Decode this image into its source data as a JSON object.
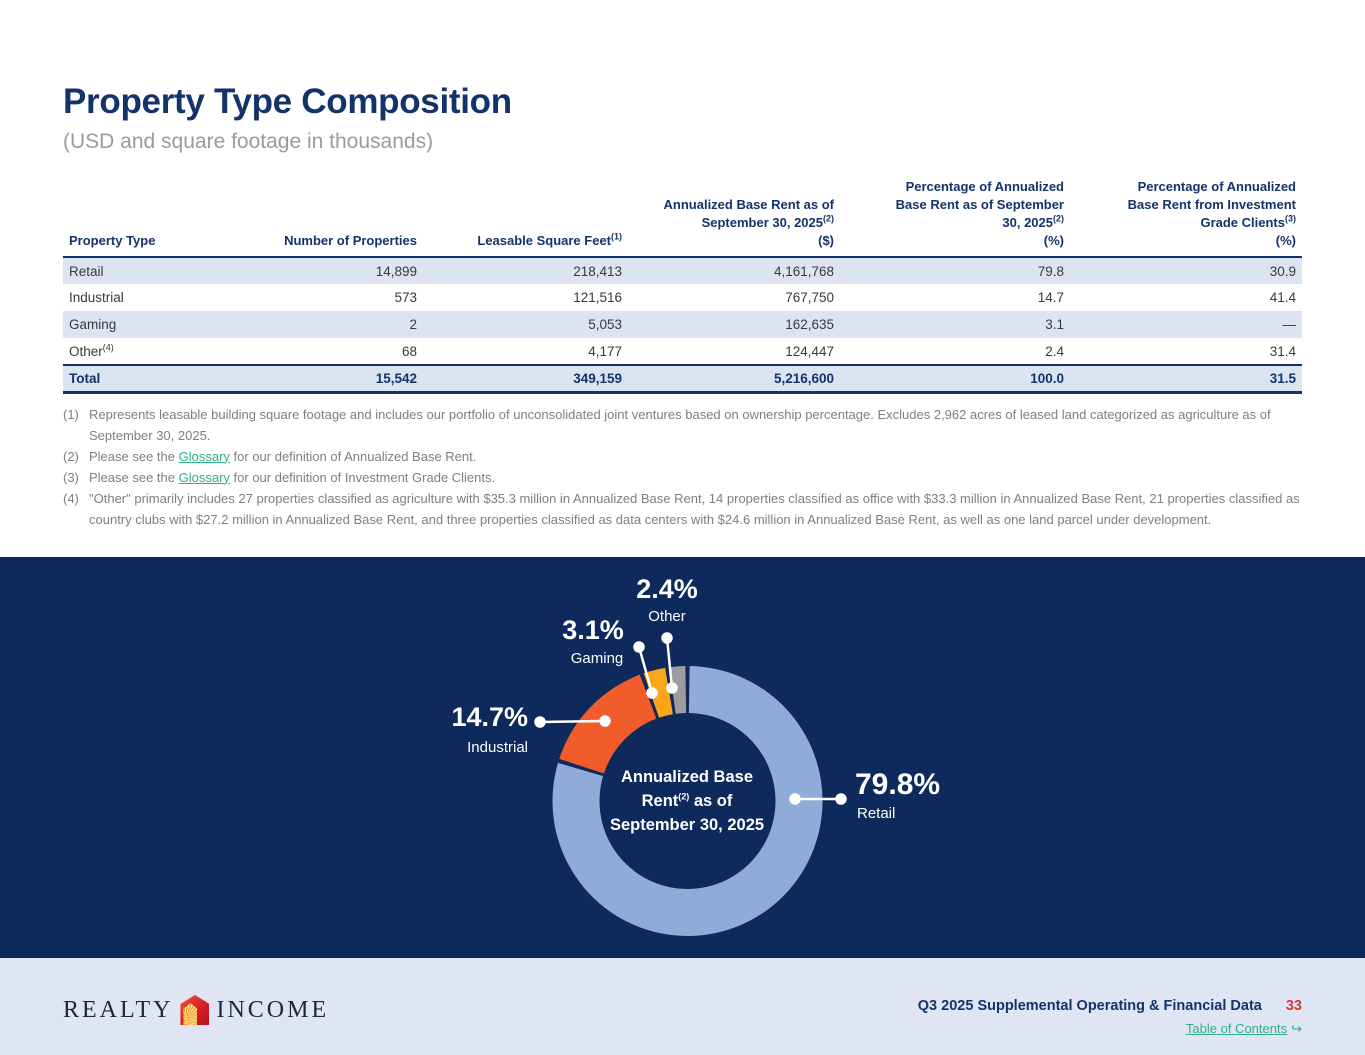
{
  "page": {
    "title": "Property Type Composition",
    "subtitle": "(USD and square footage in thousands)"
  },
  "table": {
    "columns": [
      {
        "label": "Property Type",
        "sup": "",
        "unit": ""
      },
      {
        "label": "Number of Properties",
        "sup": "",
        "unit": ""
      },
      {
        "label": "Leasable Square Feet",
        "sup": "(1)",
        "unit": ""
      },
      {
        "label": "Annualized Base Rent as of September 30, 2025",
        "sup": "(2)",
        "unit": "($)"
      },
      {
        "label": "Percentage of Annualized Base Rent as of September 30, 2025",
        "sup": "(2)",
        "unit": "(%)"
      },
      {
        "label": "Percentage of Annualized Base Rent from Investment Grade Clients",
        "sup": "(3)",
        "unit": "(%)"
      }
    ],
    "rows": [
      {
        "property_type": "Retail",
        "sup": "",
        "num_properties": "14,899",
        "leasable_sqft": "218,413",
        "abr": "4,161,768",
        "abr_pct": "79.8",
        "ig_pct": "30.9"
      },
      {
        "property_type": "Industrial",
        "sup": "",
        "num_properties": "573",
        "leasable_sqft": "121,516",
        "abr": "767,750",
        "abr_pct": "14.7",
        "ig_pct": "41.4"
      },
      {
        "property_type": "Gaming",
        "sup": "",
        "num_properties": "2",
        "leasable_sqft": "5,053",
        "abr": "162,635",
        "abr_pct": "3.1",
        "ig_pct": "—"
      },
      {
        "property_type": "Other",
        "sup": "(4)",
        "num_properties": "68",
        "leasable_sqft": "4,177",
        "abr": "124,447",
        "abr_pct": "2.4",
        "ig_pct": "31.4"
      }
    ],
    "total": {
      "property_type": "Total",
      "num_properties": "15,542",
      "leasable_sqft": "349,159",
      "abr": "5,216,600",
      "abr_pct": "100.0",
      "ig_pct": "31.5"
    }
  },
  "footnotes": [
    {
      "marker": "(1)",
      "segments": [
        {
          "text": "Represents leasable building square footage and includes our portfolio of unconsolidated joint ventures based on ownership percentage. Excludes 2,962 acres of leased land categorized as agriculture as of September 30, 2025."
        }
      ]
    },
    {
      "marker": "(2)",
      "segments": [
        {
          "text": "Please see the "
        },
        {
          "text": "Glossary",
          "link": true
        },
        {
          "text": " for our definition of Annualized Base Rent."
        }
      ]
    },
    {
      "marker": "(3)",
      "segments": [
        {
          "text": "Please see the "
        },
        {
          "text": "Glossary",
          "link": true
        },
        {
          "text": " for our definition of Investment Grade Clients."
        }
      ]
    },
    {
      "marker": "(4)",
      "segments": [
        {
          "text": "\"Other\" primarily includes 27 properties classified as agriculture with $35.3 million in Annualized Base Rent, 14 properties classified as office with $33.3 million in Annualized Base Rent, 21 properties classified as country clubs with $27.2 million in Annualized Base Rent, and three properties classified as data centers with $24.6 million in Annualized Base Rent, as well as one land parcel under development."
        }
      ]
    }
  ],
  "chart_data": {
    "type": "pie",
    "subtype": "donut",
    "background": "#0E2A5C",
    "start_angle_deg": 0,
    "direction": "clockwise",
    "center_label": {
      "line1": "Annualized Base",
      "line2_pre": "Rent",
      "line2_sup": "(2)",
      "line2_post": " as of",
      "line3": "September 30, 2025"
    },
    "series": [
      {
        "name": "Retail",
        "value": 79.8,
        "label": "79.8%",
        "color": "#8FACD9"
      },
      {
        "name": "Industrial",
        "value": 14.7,
        "label": "14.7%",
        "color": "#F15D2A"
      },
      {
        "name": "Gaming",
        "value": 3.1,
        "label": "3.1%",
        "color": "#FAA61A"
      },
      {
        "name": "Other",
        "value": 2.4,
        "label": "2.4%",
        "color": "#9D9D9D"
      }
    ]
  },
  "footer": {
    "logo_word1": "REALTY",
    "logo_word2": "INCOME",
    "doc_title": "Q3 2025 Supplemental Operating & Financial Data",
    "page_number": "33",
    "toc_label": "Table of Contents",
    "toc_arrow": "↪"
  }
}
